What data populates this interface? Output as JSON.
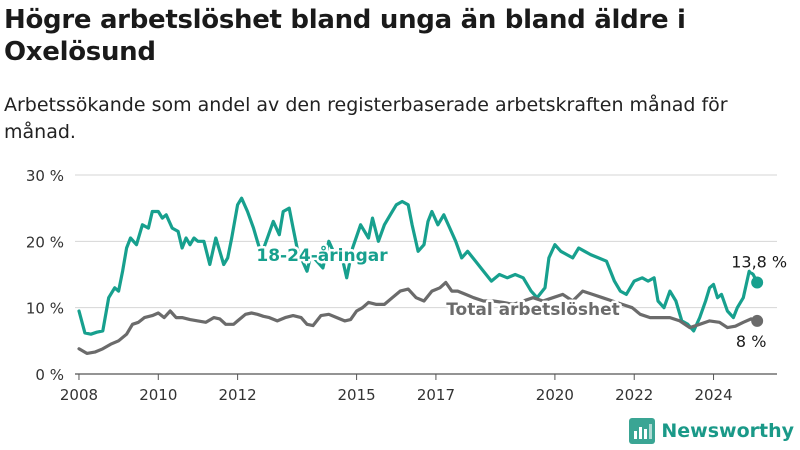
{
  "title": "Högre arbetslöshet bland unga än bland äldre i Oxelösund",
  "subtitle": "Arbetssökande som andel av den registerbaserade arbetskraften månad för månad.",
  "brand": {
    "name": "Newsworthy",
    "icon": "newsworthy-logo-icon",
    "color": "#3aa594"
  },
  "chart_data": {
    "type": "line",
    "ylim": [
      0,
      30
    ],
    "xlim": [
      2008,
      2025.6
    ],
    "y_ticks": [
      {
        "value": 0,
        "label": "0 %"
      },
      {
        "value": 10,
        "label": "10 %"
      },
      {
        "value": 20,
        "label": "20 %"
      },
      {
        "value": 30,
        "label": "30 %"
      }
    ],
    "x_ticks": [
      {
        "value": 2008,
        "label": "2008"
      },
      {
        "value": 2010,
        "label": "2010"
      },
      {
        "value": 2012,
        "label": "2012"
      },
      {
        "value": 2015,
        "label": "2015"
      },
      {
        "value": 2017,
        "label": "2017"
      },
      {
        "value": 2020,
        "label": "2020"
      },
      {
        "value": 2022,
        "label": "2022"
      },
      {
        "value": 2024,
        "label": "2024"
      }
    ],
    "grid": true,
    "series": [
      {
        "name": "18-24-åringar",
        "color": "#17a08e",
        "end_label": "13,8 %",
        "points": [
          [
            2008.0,
            9.5
          ],
          [
            2008.15,
            6.2
          ],
          [
            2008.3,
            6.0
          ],
          [
            2008.45,
            6.3
          ],
          [
            2008.6,
            6.5
          ],
          [
            2008.75,
            11.5
          ],
          [
            2008.9,
            13.0
          ],
          [
            2009.0,
            12.5
          ],
          [
            2009.1,
            15.5
          ],
          [
            2009.2,
            19.0
          ],
          [
            2009.3,
            20.5
          ],
          [
            2009.45,
            19.5
          ],
          [
            2009.6,
            22.5
          ],
          [
            2009.75,
            22.0
          ],
          [
            2009.85,
            24.5
          ],
          [
            2010.0,
            24.5
          ],
          [
            2010.1,
            23.5
          ],
          [
            2010.2,
            24.0
          ],
          [
            2010.35,
            22.0
          ],
          [
            2010.5,
            21.5
          ],
          [
            2010.6,
            19.0
          ],
          [
            2010.7,
            20.5
          ],
          [
            2010.8,
            19.5
          ],
          [
            2010.9,
            20.5
          ],
          [
            2011.0,
            20.0
          ],
          [
            2011.15,
            20.0
          ],
          [
            2011.3,
            16.5
          ],
          [
            2011.45,
            20.5
          ],
          [
            2011.55,
            18.5
          ],
          [
            2011.65,
            16.5
          ],
          [
            2011.75,
            17.5
          ],
          [
            2011.85,
            20.5
          ],
          [
            2012.0,
            25.5
          ],
          [
            2012.1,
            26.5
          ],
          [
            2012.25,
            24.5
          ],
          [
            2012.4,
            22.0
          ],
          [
            2012.5,
            20.0
          ],
          [
            2012.6,
            18.0
          ],
          [
            2012.75,
            20.5
          ],
          [
            2012.9,
            23.0
          ],
          [
            2013.05,
            21.0
          ],
          [
            2013.15,
            24.5
          ],
          [
            2013.3,
            25.0
          ],
          [
            2013.4,
            22.0
          ],
          [
            2013.5,
            19.0
          ],
          [
            2013.6,
            17.5
          ],
          [
            2013.75,
            15.5
          ],
          [
            2013.85,
            18.0
          ],
          [
            2014.0,
            17.0
          ],
          [
            2014.15,
            16.0
          ],
          [
            2014.3,
            20.0
          ],
          [
            2014.45,
            18.0
          ],
          [
            2014.6,
            18.5
          ],
          [
            2014.75,
            14.5
          ],
          [
            2014.9,
            19.0
          ],
          [
            2015.1,
            22.5
          ],
          [
            2015.3,
            20.5
          ],
          [
            2015.4,
            23.5
          ],
          [
            2015.55,
            20.0
          ],
          [
            2015.7,
            22.5
          ],
          [
            2015.85,
            24.0
          ],
          [
            2016.0,
            25.5
          ],
          [
            2016.15,
            26.0
          ],
          [
            2016.3,
            25.5
          ],
          [
            2016.4,
            22.5
          ],
          [
            2016.55,
            18.5
          ],
          [
            2016.7,
            19.5
          ],
          [
            2016.8,
            23.0
          ],
          [
            2016.9,
            24.5
          ],
          [
            2017.05,
            22.5
          ],
          [
            2017.2,
            24.0
          ],
          [
            2017.35,
            22.0
          ],
          [
            2017.5,
            20.0
          ],
          [
            2017.65,
            17.5
          ],
          [
            2017.8,
            18.5
          ],
          [
            2018.0,
            17.0
          ],
          [
            2018.2,
            15.5
          ],
          [
            2018.4,
            14.0
          ],
          [
            2018.6,
            15.0
          ],
          [
            2018.8,
            14.5
          ],
          [
            2019.0,
            15.0
          ],
          [
            2019.2,
            14.5
          ],
          [
            2019.4,
            12.5
          ],
          [
            2019.55,
            11.5
          ],
          [
            2019.75,
            13.0
          ],
          [
            2019.85,
            17.5
          ],
          [
            2020.0,
            19.5
          ],
          [
            2020.15,
            18.5
          ],
          [
            2020.3,
            18.0
          ],
          [
            2020.45,
            17.5
          ],
          [
            2020.6,
            19.0
          ],
          [
            2020.75,
            18.5
          ],
          [
            2020.9,
            18.0
          ],
          [
            2021.1,
            17.5
          ],
          [
            2021.3,
            17.0
          ],
          [
            2021.5,
            14.0
          ],
          [
            2021.65,
            12.5
          ],
          [
            2021.8,
            12.0
          ],
          [
            2022.0,
            14.0
          ],
          [
            2022.2,
            14.5
          ],
          [
            2022.35,
            14.0
          ],
          [
            2022.5,
            14.5
          ],
          [
            2022.6,
            11.0
          ],
          [
            2022.75,
            10.0
          ],
          [
            2022.9,
            12.5
          ],
          [
            2023.05,
            11.0
          ],
          [
            2023.2,
            8.0
          ],
          [
            2023.35,
            7.5
          ],
          [
            2023.5,
            6.5
          ],
          [
            2023.65,
            8.5
          ],
          [
            2023.8,
            11.0
          ],
          [
            2023.9,
            13.0
          ],
          [
            2024.0,
            13.5
          ],
          [
            2024.1,
            11.5
          ],
          [
            2024.2,
            12.0
          ],
          [
            2024.35,
            9.5
          ],
          [
            2024.5,
            8.5
          ],
          [
            2024.6,
            10.0
          ],
          [
            2024.75,
            11.5
          ],
          [
            2024.9,
            15.5
          ],
          [
            2025.0,
            15.0
          ],
          [
            2025.1,
            13.8
          ]
        ]
      },
      {
        "name": "Total arbetslöshet",
        "color": "#6b6b6b",
        "end_label": "8 %",
        "points": [
          [
            2008.0,
            3.8
          ],
          [
            2008.2,
            3.1
          ],
          [
            2008.4,
            3.3
          ],
          [
            2008.6,
            3.8
          ],
          [
            2008.8,
            4.5
          ],
          [
            2009.0,
            5.0
          ],
          [
            2009.2,
            6.0
          ],
          [
            2009.35,
            7.5
          ],
          [
            2009.5,
            7.8
          ],
          [
            2009.65,
            8.5
          ],
          [
            2009.85,
            8.8
          ],
          [
            2010.0,
            9.2
          ],
          [
            2010.15,
            8.5
          ],
          [
            2010.3,
            9.5
          ],
          [
            2010.45,
            8.5
          ],
          [
            2010.6,
            8.5
          ],
          [
            2010.8,
            8.2
          ],
          [
            2011.0,
            8.0
          ],
          [
            2011.2,
            7.8
          ],
          [
            2011.4,
            8.5
          ],
          [
            2011.55,
            8.3
          ],
          [
            2011.7,
            7.5
          ],
          [
            2011.9,
            7.5
          ],
          [
            2012.0,
            8.0
          ],
          [
            2012.2,
            9.0
          ],
          [
            2012.35,
            9.2
          ],
          [
            2012.5,
            9.0
          ],
          [
            2012.65,
            8.7
          ],
          [
            2012.8,
            8.5
          ],
          [
            2013.0,
            8.0
          ],
          [
            2013.2,
            8.5
          ],
          [
            2013.4,
            8.8
          ],
          [
            2013.6,
            8.5
          ],
          [
            2013.75,
            7.5
          ],
          [
            2013.9,
            7.3
          ],
          [
            2014.1,
            8.8
          ],
          [
            2014.3,
            9.0
          ],
          [
            2014.5,
            8.5
          ],
          [
            2014.7,
            8.0
          ],
          [
            2014.85,
            8.2
          ],
          [
            2015.0,
            9.5
          ],
          [
            2015.15,
            10.0
          ],
          [
            2015.3,
            10.8
          ],
          [
            2015.5,
            10.5
          ],
          [
            2015.7,
            10.5
          ],
          [
            2015.9,
            11.5
          ],
          [
            2016.1,
            12.5
          ],
          [
            2016.3,
            12.8
          ],
          [
            2016.5,
            11.5
          ],
          [
            2016.7,
            11.0
          ],
          [
            2016.9,
            12.5
          ],
          [
            2017.1,
            13.0
          ],
          [
            2017.25,
            13.8
          ],
          [
            2017.4,
            12.5
          ],
          [
            2017.55,
            12.5
          ],
          [
            2017.75,
            12.0
          ],
          [
            2017.95,
            11.5
          ],
          [
            2018.2,
            11.0
          ],
          [
            2018.45,
            11.0
          ],
          [
            2018.7,
            10.8
          ],
          [
            2018.95,
            10.5
          ],
          [
            2019.2,
            11.0
          ],
          [
            2019.45,
            11.5
          ],
          [
            2019.7,
            11.0
          ],
          [
            2019.95,
            11.5
          ],
          [
            2020.2,
            12.0
          ],
          [
            2020.45,
            11.0
          ],
          [
            2020.7,
            12.5
          ],
          [
            2020.95,
            12.0
          ],
          [
            2021.2,
            11.5
          ],
          [
            2021.45,
            11.0
          ],
          [
            2021.7,
            10.5
          ],
          [
            2021.95,
            10.0
          ],
          [
            2022.15,
            9.0
          ],
          [
            2022.4,
            8.5
          ],
          [
            2022.65,
            8.5
          ],
          [
            2022.9,
            8.5
          ],
          [
            2023.15,
            8.0
          ],
          [
            2023.4,
            7.0
          ],
          [
            2023.65,
            7.5
          ],
          [
            2023.9,
            8.0
          ],
          [
            2024.15,
            7.8
          ],
          [
            2024.35,
            7.0
          ],
          [
            2024.55,
            7.2
          ],
          [
            2024.75,
            7.8
          ],
          [
            2024.95,
            8.3
          ],
          [
            2025.1,
            8.0
          ]
        ]
      }
    ]
  }
}
